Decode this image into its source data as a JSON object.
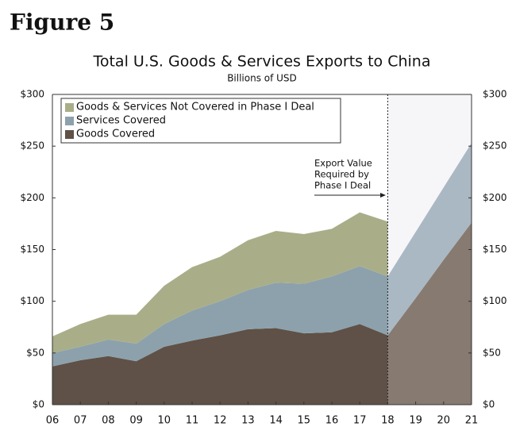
{
  "chart_data": {
    "type": "stacked_area",
    "figure_label": "Figure 5",
    "title": "Total U.S. Goods & Services Exports to China",
    "subtitle": "Billions of USD",
    "categories": [
      "06",
      "07",
      "08",
      "09",
      "10",
      "11",
      "12",
      "13",
      "14",
      "15",
      "16",
      "17",
      "18",
      "19",
      "20",
      "21"
    ],
    "series": [
      {
        "name": "Goods Covered",
        "color": "#5f5147",
        "projected_color": "#877a71",
        "values": [
          37,
          43,
          47,
          42,
          56,
          62,
          67,
          73,
          74,
          69,
          70,
          78,
          67,
          103,
          140,
          176
        ]
      },
      {
        "name": "Services Covered",
        "color": "#8ca1ac",
        "projected_color": "#aab8c3",
        "values": [
          13,
          13,
          16,
          17,
          22,
          29,
          33,
          38,
          44,
          48,
          54,
          56,
          57,
          64,
          70,
          77
        ]
      },
      {
        "name": "Goods & Services Not Covered in Phase I Deal",
        "color": "#a9ae89",
        "projected_color": "#a9ae89",
        "values": [
          16,
          22,
          24,
          28,
          37,
          42,
          43,
          48,
          50,
          48,
          46,
          52,
          53,
          null,
          null,
          null
        ]
      }
    ],
    "projection_start": "18",
    "projection_background": "#f6f6f9",
    "annotation": [
      "Export Value",
      "Required by",
      "Phase I Deal"
    ],
    "ylim": [
      0,
      300
    ],
    "yticks": [
      {
        "value": 0,
        "label": "$0"
      },
      {
        "value": 50,
        "label": "$50"
      },
      {
        "value": 100,
        "label": "$100"
      },
      {
        "value": 150,
        "label": "$150"
      },
      {
        "value": 200,
        "label": "$200"
      },
      {
        "value": 250,
        "label": "$250"
      },
      {
        "value": 300,
        "label": "$300"
      }
    ],
    "y2lim": [
      0,
      300
    ],
    "y2ticks": [
      {
        "value": 0,
        "label": "$0"
      },
      {
        "value": 50,
        "label": "$50"
      },
      {
        "value": 100,
        "label": "$100"
      },
      {
        "value": 150,
        "label": "$150"
      },
      {
        "value": 200,
        "label": "$200"
      },
      {
        "value": 250,
        "label": "$250"
      },
      {
        "value": 300,
        "label": "$300"
      }
    ],
    "legend": "top-left"
  }
}
